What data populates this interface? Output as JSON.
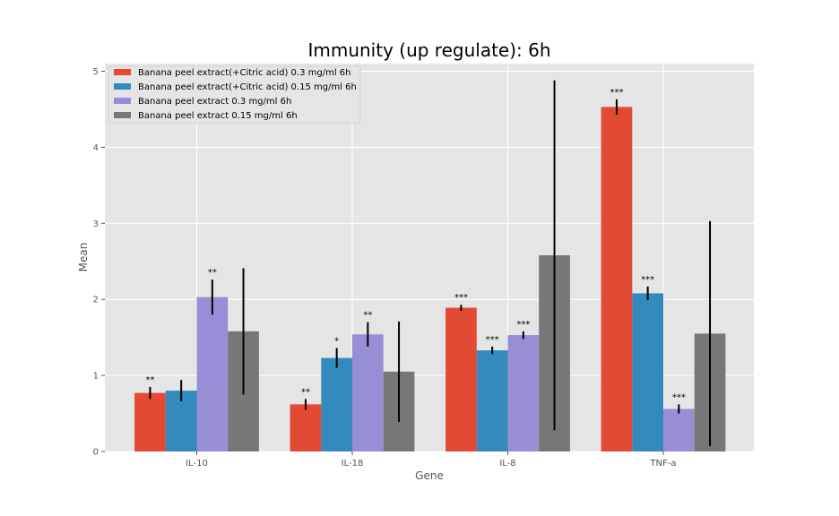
{
  "chart_data": {
    "type": "bar",
    "title": "Immunity (up regulate): 6h",
    "xlabel": "Gene",
    "ylabel": "Mean",
    "ylim": [
      0,
      5.1
    ],
    "yticks": [
      0,
      1,
      2,
      3,
      4,
      5
    ],
    "grid": true,
    "legend_position": "top-left",
    "categories": [
      "IL-10",
      "IL-18",
      "IL-8",
      "TNF-a"
    ],
    "series": [
      {
        "name": "Banana peel extract(+Citric acid) 0.3 mg/ml 6h",
        "color": "#E24A33",
        "values": [
          0.77,
          0.62,
          1.89,
          4.53
        ],
        "errors": [
          0.08,
          0.07,
          0.04,
          0.1
        ],
        "stars": [
          "**",
          "**",
          "***",
          "***"
        ]
      },
      {
        "name": "Banana peel extract(+Citric acid) 0.15 mg/ml 6h",
        "color": "#348ABD",
        "values": [
          0.8,
          1.23,
          1.33,
          2.08
        ],
        "errors": [
          0.14,
          0.13,
          0.05,
          0.09
        ],
        "stars": [
          "",
          "*",
          "***",
          "***"
        ]
      },
      {
        "name": "Banana peel extract 0.3 mg/ml 6h",
        "color": "#988ED5",
        "values": [
          2.03,
          1.54,
          1.53,
          0.56
        ],
        "errors": [
          0.23,
          0.16,
          0.05,
          0.06
        ],
        "stars": [
          "**",
          "**",
          "***",
          "***"
        ]
      },
      {
        "name": "Banana peel extract 0.15 mg/ml 6h",
        "color": "#777777",
        "values": [
          1.58,
          1.05,
          2.58,
          1.55
        ],
        "errors": [
          0.83,
          0.66,
          2.3,
          1.48
        ],
        "stars": [
          "",
          "",
          "",
          ""
        ]
      }
    ]
  }
}
